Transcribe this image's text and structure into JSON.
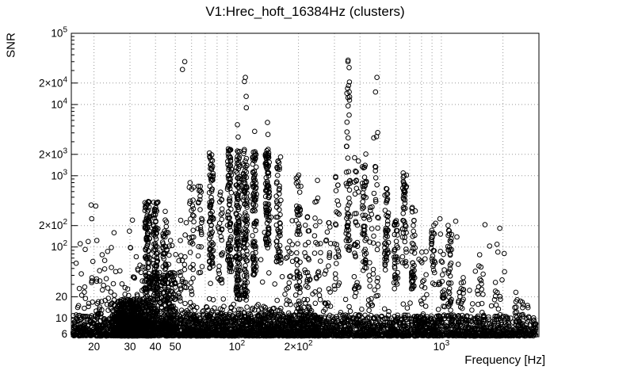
{
  "chart_data": {
    "type": "scatter",
    "title": "V1:Hrec_hoft_16384Hz (clusters)",
    "xlabel": "Frequency [Hz]",
    "ylabel": "SNR",
    "xscale": "log",
    "yscale": "log",
    "xlim": [
      15.5,
      3000
    ],
    "ylim": [
      5.5,
      100000
    ],
    "grid": true,
    "legend": false,
    "marker": "open-circle",
    "marker_color": "#000000",
    "grid_color": "#999999",
    "x_ticks": [
      {
        "v": 20,
        "label": "20"
      },
      {
        "v": 30,
        "label": "30"
      },
      {
        "v": 40,
        "label": "40"
      },
      {
        "v": 50,
        "label": "50"
      },
      {
        "v": 100,
        "label": "10^2"
      },
      {
        "v": 200,
        "label": "2×10^2"
      },
      {
        "v": 1000,
        "label": "10^3"
      }
    ],
    "y_ticks": [
      {
        "v": 6,
        "label": "6"
      },
      {
        "v": 10,
        "label": "10"
      },
      {
        "v": 20,
        "label": "20"
      },
      {
        "v": 100,
        "label": "10^2"
      },
      {
        "v": 200,
        "label": "2×10^2"
      },
      {
        "v": 1000,
        "label": "10^3"
      },
      {
        "v": 2000,
        "label": "2×10^3"
      },
      {
        "v": 10000,
        "label": "10^4"
      },
      {
        "v": 20000,
        "label": "2×10^4"
      },
      {
        "v": 100000,
        "label": "10^5"
      }
    ],
    "model": {
      "seed": 1337,
      "marker_radius": 2.8,
      "background": [
        {
          "type": "band",
          "fmin": 15.8,
          "fmax": 2900,
          "snr_min": 5.6,
          "snr_exp": 0.3,
          "bias": 2.4,
          "n": 3000
        },
        {
          "type": "band",
          "fmin": 15.8,
          "fmax": 2900,
          "snr_min": 5.6,
          "snr_exp": 0.52,
          "bias": 4.5,
          "n": 500
        },
        {
          "type": "hump",
          "f_center": 30,
          "f_sigma_log": 0.07,
          "snr_min": 5.6,
          "snr_exp": 0.52,
          "bias": 2.2,
          "n": 900
        },
        {
          "type": "band",
          "fmin": 35,
          "fmax": 50,
          "snr_min": 7,
          "snr_exp": 0.8,
          "bias": 2.0,
          "n": 350
        },
        {
          "type": "band",
          "fmin": 55,
          "fmax": 250,
          "snr_min": 5.6,
          "snr_exp": 0.42,
          "bias": 2.3,
          "n": 550
        },
        {
          "type": "band",
          "fmin": 16,
          "fmax": 2700,
          "snr_min": 8,
          "snr_exp": 1.55,
          "bias": 3.0,
          "n": 170
        }
      ],
      "clusters": [
        {
          "f": 17,
          "w": 0.03,
          "smin": 8,
          "smax": 120,
          "n": 14,
          "b": 1.5
        },
        {
          "f": 20.5,
          "w": 0.04,
          "smin": 9,
          "smax": 420,
          "n": 26,
          "b": 1.6
        },
        {
          "f": 23,
          "w": 0.03,
          "smin": 9,
          "smax": 150,
          "n": 14,
          "b": 1.5
        },
        {
          "f": 26.5,
          "w": 0.03,
          "smin": 9,
          "smax": 60,
          "n": 14,
          "b": 1.4
        },
        {
          "f": 31,
          "w": 0.03,
          "smin": 9,
          "smax": 170,
          "n": 12,
          "b": 1.6
        },
        {
          "f": 33.5,
          "w": 0.02,
          "smin": 9,
          "smax": 60,
          "n": 10,
          "b": 1.4
        },
        {
          "f": 36.5,
          "w": 0.012,
          "smin": 25,
          "smax": 460,
          "n": 85,
          "b": 1.1
        },
        {
          "f": 40,
          "w": 0.012,
          "smin": 25,
          "smax": 470,
          "n": 85,
          "b": 1.1
        },
        {
          "f": 44.5,
          "w": 0.012,
          "smin": 30,
          "smax": 330,
          "n": 45,
          "b": 1.2
        },
        {
          "f": 48,
          "w": 0.02,
          "smin": 10,
          "smax": 130,
          "n": 22,
          "b": 1.4
        },
        {
          "f": 52,
          "w": 0.02,
          "smin": 9,
          "smax": 60,
          "n": 14,
          "b": 1.3
        },
        {
          "f": 55,
          "w": 0.015,
          "smin": 10,
          "smax": 300,
          "n": 16,
          "b": 1.5,
          "outliers": [
            31000,
            40000
          ]
        },
        {
          "f": 60,
          "w": 0.012,
          "smin": 15,
          "smax": 1000,
          "n": 30,
          "b": 1.3
        },
        {
          "f": 66,
          "w": 0.012,
          "smin": 40,
          "smax": 900,
          "n": 24,
          "b": 1.2
        },
        {
          "f": 75,
          "w": 0.01,
          "smin": 50,
          "smax": 2200,
          "n": 80,
          "b": 1.15
        },
        {
          "f": 83,
          "w": 0.012,
          "smin": 30,
          "smax": 700,
          "n": 28,
          "b": 1.2
        },
        {
          "f": 92,
          "w": 0.01,
          "smin": 45,
          "smax": 2400,
          "n": 85,
          "b": 1.1
        },
        {
          "f": 101,
          "w": 0.01,
          "smin": 18,
          "smax": 2300,
          "n": 130,
          "b": 1.2,
          "outliers": [
            3500,
            5200
          ]
        },
        {
          "f": 110,
          "w": 0.01,
          "smin": 18,
          "smax": 2400,
          "n": 110,
          "b": 1.15,
          "outliers": [
            9000,
            13000,
            21000,
            24000
          ]
        },
        {
          "f": 122,
          "w": 0.01,
          "smin": 40,
          "smax": 2300,
          "n": 90,
          "b": 1.1,
          "outliers": [
            4200
          ]
        },
        {
          "f": 141,
          "w": 0.01,
          "smin": 90,
          "smax": 2350,
          "n": 95,
          "b": 1.05,
          "outliers": [
            3800,
            5600
          ]
        },
        {
          "f": 160,
          "w": 0.012,
          "smin": 60,
          "smax": 1900,
          "n": 55,
          "b": 1.2
        },
        {
          "f": 182,
          "w": 0.02,
          "smin": 8,
          "smax": 120,
          "n": 20,
          "b": 1.4
        },
        {
          "f": 200,
          "w": 0.012,
          "smin": 8,
          "smax": 1050,
          "n": 55,
          "b": 1.3
        },
        {
          "f": 222,
          "w": 0.015,
          "smin": 9,
          "smax": 420,
          "n": 26,
          "b": 1.4
        },
        {
          "f": 248,
          "w": 0.015,
          "smin": 15,
          "smax": 900,
          "n": 24,
          "b": 1.3
        },
        {
          "f": 278,
          "w": 0.015,
          "smin": 9,
          "smax": 230,
          "n": 18,
          "b": 1.3
        },
        {
          "f": 308,
          "w": 0.012,
          "smin": 25,
          "smax": 1150,
          "n": 26,
          "b": 1.3
        },
        {
          "f": 350,
          "w": 0.01,
          "smin": 90,
          "smax": 26000,
          "n": 55,
          "b": 1.25,
          "outliers": [
            33000,
            40000,
            42000
          ]
        },
        {
          "f": 385,
          "w": 0.012,
          "smin": 20,
          "smax": 1900,
          "n": 34,
          "b": 1.3
        },
        {
          "f": 420,
          "w": 0.01,
          "smin": 45,
          "smax": 2200,
          "n": 48,
          "b": 1.15
        },
        {
          "f": 455,
          "w": 0.015,
          "smin": 15,
          "smax": 700,
          "n": 20,
          "b": 1.3
        },
        {
          "f": 480,
          "w": 0.012,
          "smin": 20,
          "smax": 9000,
          "n": 22,
          "b": 1.4,
          "outliers": [
            15000,
            24000
          ]
        },
        {
          "f": 540,
          "w": 0.01,
          "smin": 45,
          "smax": 700,
          "n": 45,
          "b": 1.1
        },
        {
          "f": 600,
          "w": 0.01,
          "smin": 25,
          "smax": 260,
          "n": 38,
          "b": 1.1
        },
        {
          "f": 660,
          "w": 0.01,
          "smin": 45,
          "smax": 1100,
          "n": 48,
          "b": 1.15
        },
        {
          "f": 730,
          "w": 0.01,
          "smin": 25,
          "smax": 430,
          "n": 40,
          "b": 1.1
        },
        {
          "f": 820,
          "w": 0.015,
          "smin": 9,
          "smax": 110,
          "n": 18,
          "b": 1.3
        },
        {
          "f": 915,
          "w": 0.012,
          "smin": 20,
          "smax": 240,
          "n": 26,
          "b": 1.2
        },
        {
          "f": 1000,
          "w": 0.015,
          "smin": 9,
          "smax": 160,
          "n": 22,
          "b": 1.3
        },
        {
          "f": 1100,
          "w": 0.01,
          "smin": 15,
          "smax": 230,
          "n": 36,
          "b": 1.1
        },
        {
          "f": 1240,
          "w": 0.015,
          "smin": 8,
          "smax": 60,
          "n": 18,
          "b": 1.2
        },
        {
          "f": 1550,
          "w": 0.015,
          "smin": 15,
          "smax": 95,
          "n": 14,
          "b": 1.2
        },
        {
          "f": 1900,
          "w": 0.02,
          "smin": 7,
          "smax": 40,
          "n": 14,
          "b": 1.2
        },
        {
          "f": 2400,
          "w": 0.02,
          "smin": 7,
          "smax": 26,
          "n": 12,
          "b": 1.2
        }
      ]
    }
  }
}
